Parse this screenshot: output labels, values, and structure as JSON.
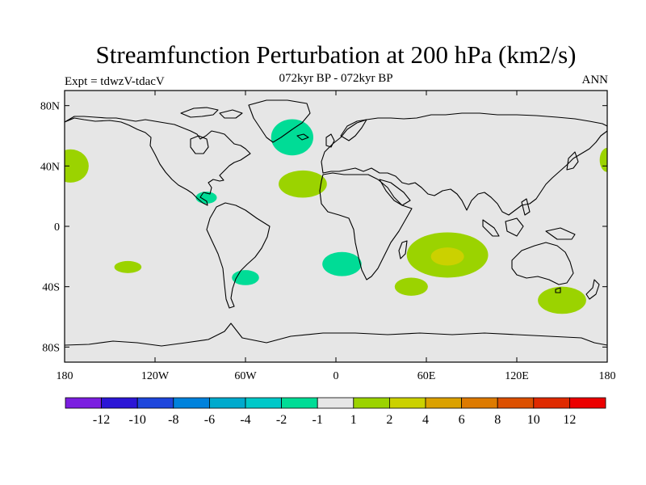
{
  "header": {
    "title": "Streamfunction Perturbation at 200 hPa (km2/s)",
    "subtitle": "072kyr BP - 072kyr BP",
    "experiment": "Expt = tdwzV-tdacV",
    "season": "ANN"
  },
  "map": {
    "projection": "cylindrical-equidistant",
    "lon_range": [
      -180,
      180
    ],
    "lat_range": [
      -90,
      90
    ],
    "background_color": "#e6e6e6",
    "coastline_color": "#000000",
    "lat_ticks": [
      {
        "value": 80,
        "label": "80N"
      },
      {
        "value": 40,
        "label": "40N"
      },
      {
        "value": 0,
        "label": "0"
      },
      {
        "value": -40,
        "label": "40S"
      },
      {
        "value": -80,
        "label": "80S"
      }
    ],
    "lon_ticks": [
      {
        "value": -180,
        "label": "180"
      },
      {
        "value": -120,
        "label": "120W"
      },
      {
        "value": -60,
        "label": "60W"
      },
      {
        "value": 0,
        "label": "0"
      },
      {
        "value": 60,
        "label": "60E"
      },
      {
        "value": 120,
        "label": "120E"
      },
      {
        "value": 180,
        "label": "180"
      }
    ],
    "anomalies": [
      {
        "region": "north-pacific-west-edge",
        "lon": -176,
        "lat": 40,
        "rlon": 12,
        "rlat": 11,
        "level": "1 to 2",
        "color": "#9bd300"
      },
      {
        "region": "north-pacific-east-edge",
        "lon": 180,
        "lat": 44,
        "rlon": 5,
        "rlat": 8,
        "level": "1 to 2",
        "color": "#9bd300"
      },
      {
        "region": "north-atlantic-greenland",
        "lon": -29,
        "lat": 59,
        "rlon": 14,
        "rlat": 12,
        "level": "-2 to -1",
        "color": "#00dc96"
      },
      {
        "region": "subtropical-atlantic",
        "lon": -22,
        "lat": 28,
        "rlon": 16,
        "rlat": 9,
        "level": "1 to 2",
        "color": "#9bd300"
      },
      {
        "region": "caribbean",
        "lon": -86,
        "lat": 19,
        "rlon": 7,
        "rlat": 4,
        "level": "-2 to -1",
        "color": "#00dc96"
      },
      {
        "region": "south-pacific",
        "lon": -138,
        "lat": -27,
        "rlon": 9,
        "rlat": 4,
        "level": "1 to 2",
        "color": "#9bd300"
      },
      {
        "region": "south-america-southeast",
        "lon": -60,
        "lat": -34,
        "rlon": 9,
        "rlat": 5,
        "level": "-2 to -1",
        "color": "#00dc96"
      },
      {
        "region": "south-atlantic",
        "lon": 4,
        "lat": -25,
        "rlon": 13,
        "rlat": 8,
        "level": "-2 to -1",
        "color": "#00dc96"
      },
      {
        "region": "southern-africa-east",
        "lon": 50,
        "lat": -40,
        "rlon": 11,
        "rlat": 6,
        "level": "1 to 2",
        "color": "#9bd300"
      },
      {
        "region": "indian-ocean",
        "lon": 74,
        "lat": -19,
        "rlon": 27,
        "rlat": 15,
        "level": "1 to 2",
        "color": "#9bd300"
      },
      {
        "region": "indian-ocean-core",
        "lon": 74,
        "lat": -20,
        "rlon": 11,
        "rlat": 6,
        "level": "2 to 4",
        "color": "#cbd100"
      },
      {
        "region": "tasman-sea",
        "lon": 150,
        "lat": -49,
        "rlon": 16,
        "rlat": 9,
        "level": "1 to 2",
        "color": "#9bd300"
      }
    ]
  },
  "colorbar": {
    "colors": [
      "#7b1ee0",
      "#2c16d6",
      "#1e46dc",
      "#0082dc",
      "#00aacd",
      "#00c8c8",
      "#00dc96",
      "#e6e6e6",
      "#9bd300",
      "#cbd100",
      "#dba100",
      "#dd7a00",
      "#dc5000",
      "#df2a00",
      "#ec0000"
    ],
    "labels": [
      "-12",
      "-10",
      "-8",
      "-6",
      "-4",
      "-2",
      "-1",
      "1",
      "2",
      "4",
      "6",
      "8",
      "10",
      "12"
    ]
  }
}
